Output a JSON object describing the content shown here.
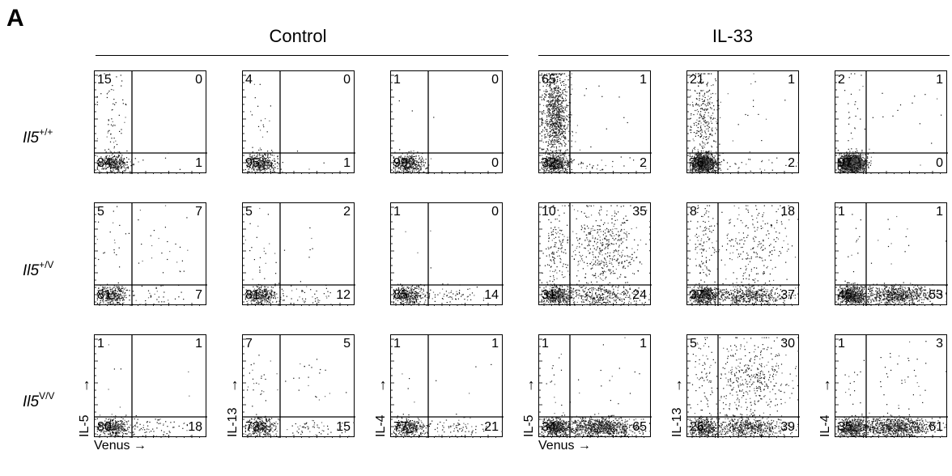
{
  "panel_label": "A",
  "groups": [
    {
      "title": "Control"
    },
    {
      "title": "IL-33"
    }
  ],
  "rows": [
    {
      "gene": "Il5",
      "genotype": "+/+"
    },
    {
      "gene": "Il5",
      "genotype": "+/V"
    },
    {
      "gene": "Il5",
      "genotype": "V/V"
    }
  ],
  "axis_labels": {
    "x": "Venus",
    "y": [
      "IL-5",
      "IL-13",
      "IL-4",
      "IL-5",
      "IL-13",
      "IL-4"
    ],
    "arrow": "→"
  },
  "chart_data": {
    "type": "scatter",
    "description_units": "percent of cells per quadrant",
    "columns": [
      "Control IL-5",
      "Control IL-13",
      "Control IL-4",
      "IL-33 IL-5",
      "IL-33 IL-13",
      "IL-33 IL-4"
    ],
    "quadrants": [
      [
        {
          "ul": "15",
          "ur": "0",
          "ll": "84",
          "lr": "1"
        },
        {
          "ul": "4",
          "ur": "0",
          "ll": "95",
          "lr": "1"
        },
        {
          "ul": "1",
          "ur": "0",
          "ll": "99",
          "lr": "0"
        },
        {
          "ul": "65",
          "ur": "1",
          "ll": "32",
          "lr": "2"
        },
        {
          "ul": "21",
          "ur": "1",
          "ll": "76",
          "lr": "2"
        },
        {
          "ul": "2",
          "ur": "1",
          "ll": "97",
          "lr": "0"
        }
      ],
      [
        {
          "ul": "5",
          "ur": "7",
          "ll": "81",
          "lr": "7"
        },
        {
          "ul": "5",
          "ur": "2",
          "ll": "81",
          "lr": "12"
        },
        {
          "ul": "1",
          "ur": "0",
          "ll": "85",
          "lr": "14"
        },
        {
          "ul": "10",
          "ur": "35",
          "ll": "31",
          "lr": "24"
        },
        {
          "ul": "8",
          "ur": "18",
          "ll": "37",
          "lr": "37"
        },
        {
          "ul": "1",
          "ur": "1",
          "ll": "45",
          "lr": "53"
        }
      ],
      [
        {
          "ul": "1",
          "ur": "1",
          "ll": "80",
          "lr": "18"
        },
        {
          "ul": "7",
          "ur": "5",
          "ll": "73",
          "lr": "15"
        },
        {
          "ul": "1",
          "ur": "1",
          "ll": "77",
          "lr": "21"
        },
        {
          "ul": "1",
          "ur": "1",
          "ll": "34",
          "lr": "65"
        },
        {
          "ul": "5",
          "ur": "30",
          "ll": "26",
          "lr": "39"
        },
        {
          "ul": "1",
          "ur": "3",
          "ll": "35",
          "lr": "61"
        }
      ]
    ]
  }
}
